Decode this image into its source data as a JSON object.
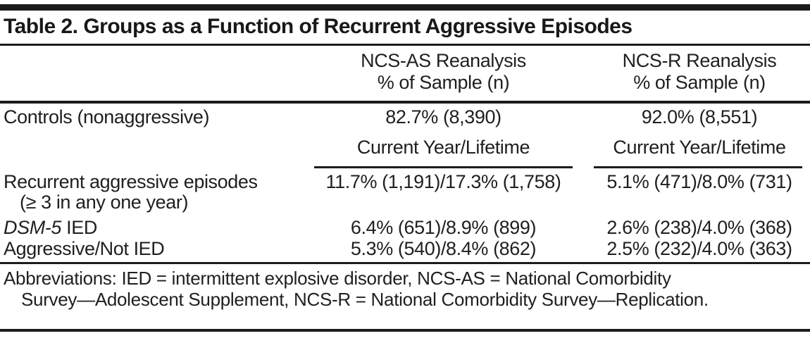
{
  "colors": {
    "background": "#ffffff",
    "text": "#1f1f1f",
    "rule": "#1c1c1c"
  },
  "table": {
    "title": "Table 2. Groups as a Function of Recurrent Aggressive Episodes",
    "col_headers": [
      {
        "line1": "NCS-AS Reanalysis",
        "line2": "% of Sample (n)"
      },
      {
        "line1": "NCS-R Reanalysis",
        "line2": "% of Sample (n)"
      }
    ],
    "controls": {
      "label": "Controls (nonaggressive)",
      "ncs_as": "82.7% (8,390)",
      "ncs_r": "92.0% (8,551)"
    },
    "subheaders": {
      "ncs_as": "Current Year/Lifetime",
      "ncs_r": "Current Year/Lifetime"
    },
    "rows": [
      {
        "label": "Recurrent aggressive episodes",
        "label2": "(≥ 3 in any one year)",
        "ncs_as": "11.7% (1,191)/17.3% (1,758)",
        "ncs_r": "5.1% (471)/8.0% (731)"
      },
      {
        "label_italic": "DSM-5",
        "label": " IED",
        "ncs_as": "6.4% (651)/8.9% (899)",
        "ncs_r": "2.6% (238)/4.0% (368)"
      },
      {
        "label": "Aggressive/Not IED",
        "ncs_as": "5.3% (540)/8.4% (862)",
        "ncs_r": "2.5% (232)/4.0% (363)"
      }
    ],
    "footnote": {
      "line1": "Abbreviations: IED = intermittent explosive disorder, NCS-AS = National Comorbidity",
      "line2": "Survey—Adolescent Supplement, NCS-R = National Comorbidity Survey—Replication."
    }
  }
}
